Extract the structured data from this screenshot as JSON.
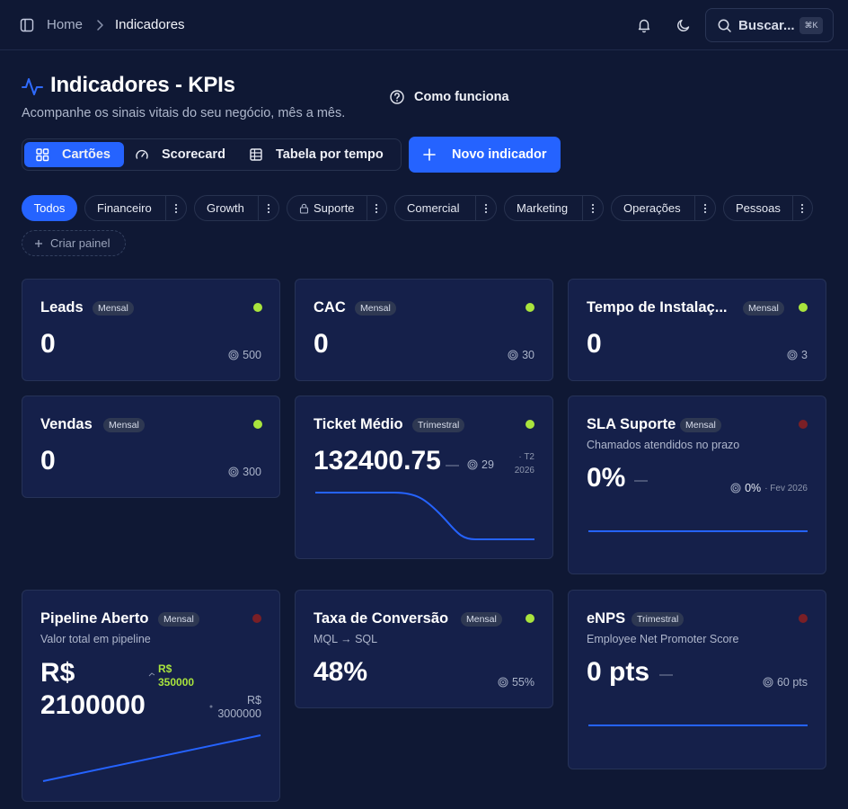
{
  "topbar": {
    "breadcrumb_home": "Home",
    "breadcrumb_current": "Indicadores",
    "search_label": "Buscar...",
    "search_shortcut": "⌘K"
  },
  "header": {
    "title": "Indicadores - KPIs",
    "subtitle": "Acompanhe os sinais vitais do seu negócio, mês a mês.",
    "how_it_works": "Como funciona"
  },
  "views": {
    "cards": "Cartões",
    "scorecard": "Scorecard",
    "table": "Tabela por tempo",
    "active": "Cartões"
  },
  "actions": {
    "new_indicator": "Novo indicador"
  },
  "filters": {
    "all": "Todos",
    "financeiro": "Financeiro",
    "growth": "Growth",
    "suporte": "Suporte",
    "comercial": "Comercial",
    "marketing": "Marketing",
    "operacoes": "Operações",
    "pessoas": "Pessoas",
    "create_panel": "Criar painel"
  },
  "colors": {
    "accent": "#2563ff",
    "background": "#0f1834",
    "card": "#15204a",
    "status_ok": "#a9e43d",
    "status_bad": "#7a1f26"
  },
  "cards": {
    "leads": {
      "title": "Leads",
      "period": "Mensal",
      "status": "green",
      "value": "0",
      "target": "500"
    },
    "cac": {
      "title": "CAC",
      "period": "Mensal",
      "status": "green",
      "value": "0",
      "target": "30"
    },
    "install": {
      "title": "Tempo de Instalaç...",
      "period": "Mensal",
      "status": "green",
      "value": "0",
      "target": "3"
    },
    "vendas": {
      "title": "Vendas",
      "period": "Mensal",
      "status": "green",
      "value": "0",
      "target": "300"
    },
    "ticket": {
      "title": "Ticket Médio",
      "period": "Trimestral",
      "status": "green",
      "value": "132400.75",
      "dash": "—",
      "target": "29",
      "period_tag": "· T2",
      "year": "2026"
    },
    "sla": {
      "title": "SLA Suporte",
      "period": "Mensal",
      "status": "red",
      "description": "Chamados atendidos no prazo",
      "value": "0%",
      "dash": "—",
      "target": "0%",
      "target_date": "· Fev 2026"
    },
    "pipeline": {
      "title": "Pipeline Aberto",
      "period": "Mensal",
      "status": "red",
      "description": "Valor total em pipeline",
      "value_line1": "R$",
      "value_line2": "2100000",
      "delta_line1": "R$",
      "delta_line2": "350000",
      "target_line1": "R$",
      "target_line2": "3000000"
    },
    "conversao": {
      "title": "Taxa de Conversão",
      "period": "Mensal",
      "status": "green",
      "description": "MQL → SQL",
      "value": "48%",
      "target": "55%"
    },
    "enps": {
      "title": "eNPS",
      "period": "Trimestral",
      "status": "red",
      "description": "Employee Net Promoter Score",
      "value": "0 pts",
      "dash": "—",
      "target": "60 pts"
    }
  },
  "icons": [
    "sidebar-toggle-icon",
    "chevron-right-icon",
    "bell-icon",
    "moon-icon",
    "search-icon",
    "pulse-icon",
    "help-circle-icon",
    "grid-icon",
    "gauge-icon",
    "table-icon",
    "plus-icon",
    "more-vertical-icon",
    "lock-icon",
    "target-icon",
    "trend-icon"
  ]
}
